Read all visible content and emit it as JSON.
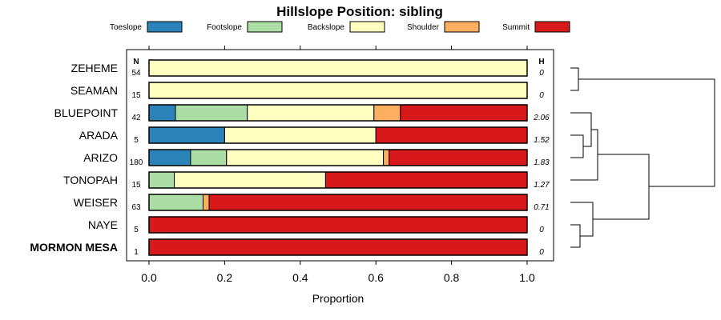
{
  "chart_data": {
    "type": "bar",
    "title": "Hillslope Position: sibling",
    "xlabel": "Proportion",
    "xlim": [
      0,
      1
    ],
    "x_ticks": [
      "0.0",
      "0.2",
      "0.4",
      "0.6",
      "0.8",
      "1.0"
    ],
    "n_header": "N",
    "h_header": "H",
    "categories": [
      {
        "name": "Toeslope",
        "color": "#2b83ba"
      },
      {
        "name": "Footslope",
        "color": "#abdda4"
      },
      {
        "name": "Backslope",
        "color": "#ffffbf"
      },
      {
        "name": "Shoulder",
        "color": "#fdae61"
      },
      {
        "name": "Summit",
        "color": "#d7191c"
      }
    ],
    "rows": [
      {
        "label": "ZEHEME",
        "n": "54",
        "h": "0",
        "bold": false,
        "values": [
          0,
          0,
          1,
          0,
          0
        ]
      },
      {
        "label": "SEAMAN",
        "n": "15",
        "h": "0",
        "bold": false,
        "values": [
          0,
          0,
          1,
          0,
          0
        ]
      },
      {
        "label": "BLUEPOINT",
        "n": "42",
        "h": "2.06",
        "bold": false,
        "values": [
          0.07,
          0.19,
          0.335,
          0.07,
          0.335
        ]
      },
      {
        "label": "ARADA",
        "n": "5",
        "h": "1.52",
        "bold": false,
        "values": [
          0.2,
          0,
          0.4,
          0,
          0.4
        ]
      },
      {
        "label": "ARIZO",
        "n": "180",
        "h": "1.83",
        "bold": false,
        "values": [
          0.11,
          0.095,
          0.415,
          0.015,
          0.365
        ]
      },
      {
        "label": "TONOPAH",
        "n": "15",
        "h": "1.27",
        "bold": false,
        "values": [
          0,
          0.067,
          0.4,
          0,
          0.533
        ]
      },
      {
        "label": "WEISER",
        "n": "63",
        "h": "0.71",
        "bold": false,
        "values": [
          0,
          0.143,
          0,
          0.016,
          0.841
        ]
      },
      {
        "label": "NAYE",
        "n": "5",
        "h": "0",
        "bold": false,
        "values": [
          0,
          0,
          0,
          0,
          1
        ]
      },
      {
        "label": "MORMON MESA",
        "n": "1",
        "h": "0",
        "bold": true,
        "values": [
          0,
          0,
          0,
          0,
          1
        ]
      }
    ],
    "dendrogram": {
      "description_note": "hierarchical clustering of rows shown to the right of the plot",
      "merges": [
        {
          "a": "ZEHEME",
          "b": "SEAMAN",
          "height": 0.1
        },
        {
          "a": "ARADA",
          "b": "ARIZO",
          "height": 0.12
        },
        {
          "a": "BLUEPOINT",
          "b": "ARADA+ARIZO",
          "height": 0.2
        },
        {
          "a": "BLUEPOINT+ARADA+ARIZO",
          "b": "TONOPAH",
          "height": 0.25
        },
        {
          "a": "NAYE",
          "b": "MORMON MESA",
          "height": 0.1
        },
        {
          "a": "WEISER",
          "b": "NAYE+MORMON MESA",
          "height": 0.25
        },
        {
          "a": "BLUEPOINT-group",
          "b": "WEISER-group",
          "height": 0.75
        },
        {
          "a": "ZEHEME+SEAMAN",
          "b": "rest",
          "height": 1.0
        }
      ]
    }
  }
}
